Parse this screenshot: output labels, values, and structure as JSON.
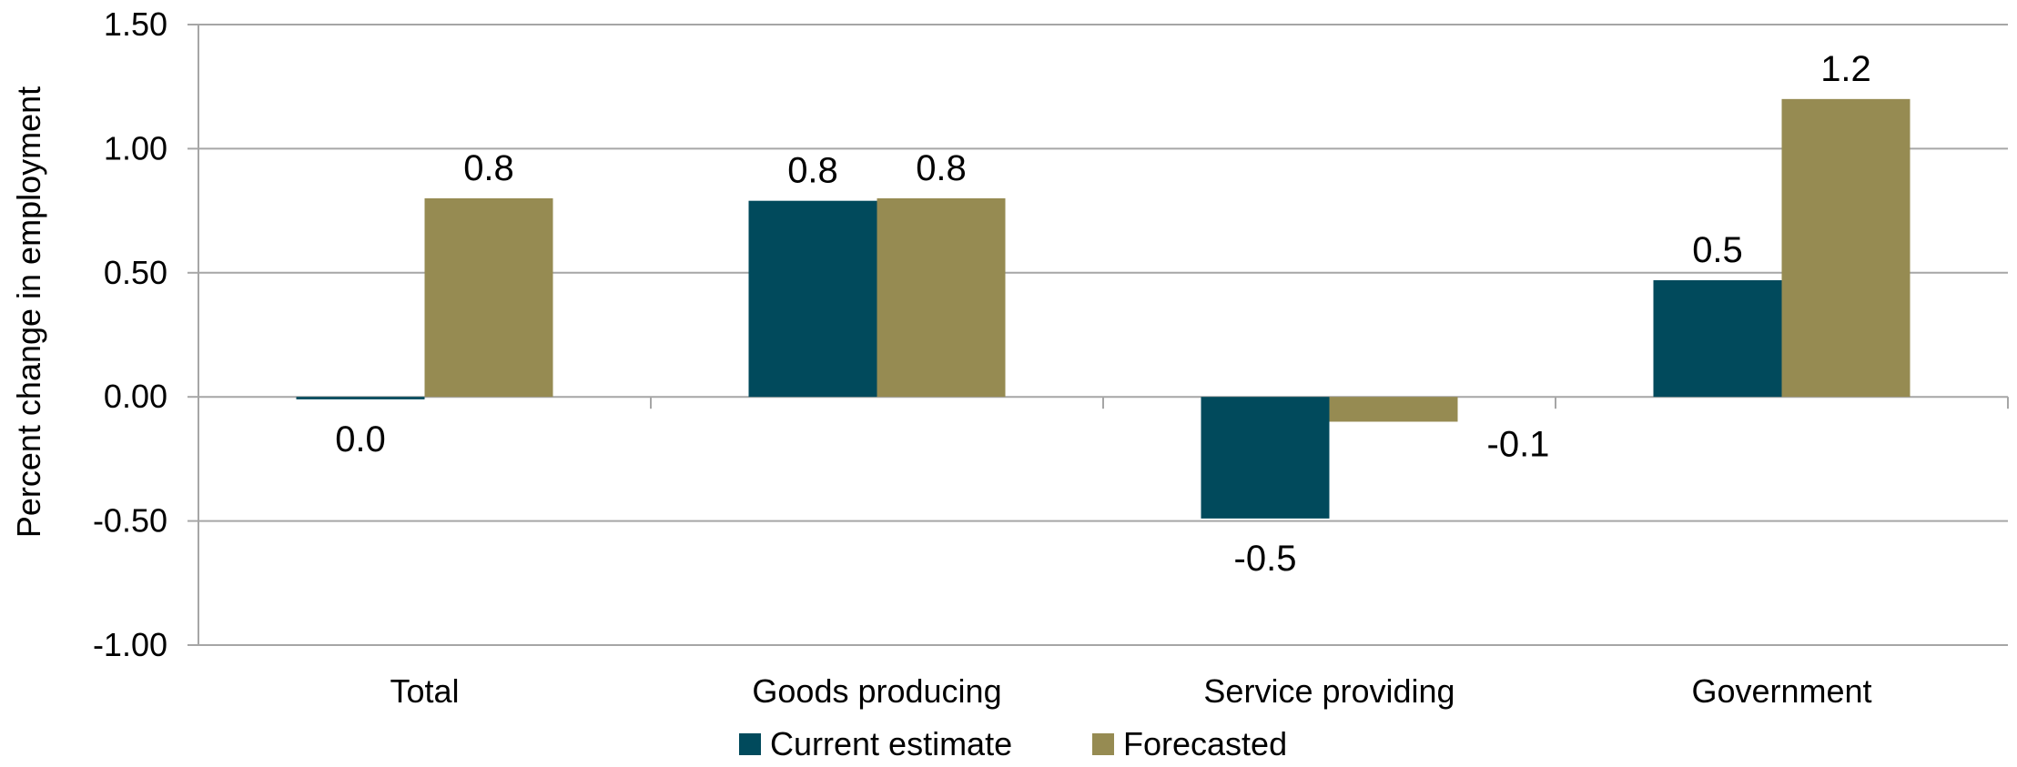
{
  "chart_data": {
    "type": "bar",
    "title": "",
    "ylabel": "Percent change in employment",
    "xlabel": "",
    "categories": [
      "Total",
      "Goods producing",
      "Service providing",
      "Government"
    ],
    "series": [
      {
        "name": "Current estimate",
        "color": "#014A5C",
        "values": [
          -0.01,
          0.79,
          -0.49,
          0.47
        ],
        "labels": [
          "0.0",
          "0.8",
          "-0.5",
          "0.5"
        ]
      },
      {
        "name": "Forecasted",
        "color": "#968B52",
        "values": [
          0.8,
          0.8,
          -0.1,
          1.2
        ],
        "labels": [
          "0.8",
          "0.8",
          "-0.1",
          "1.2"
        ]
      }
    ],
    "ylim": [
      -1.0,
      1.5
    ],
    "yticks": [
      1.5,
      1.0,
      0.5,
      0.0,
      -0.5,
      -1.0
    ],
    "ytick_labels": [
      "1.50",
      "1.00",
      "0.50",
      "0.00",
      "-0.50",
      "-1.00"
    ],
    "grid": true,
    "legend": "bottom-center"
  }
}
